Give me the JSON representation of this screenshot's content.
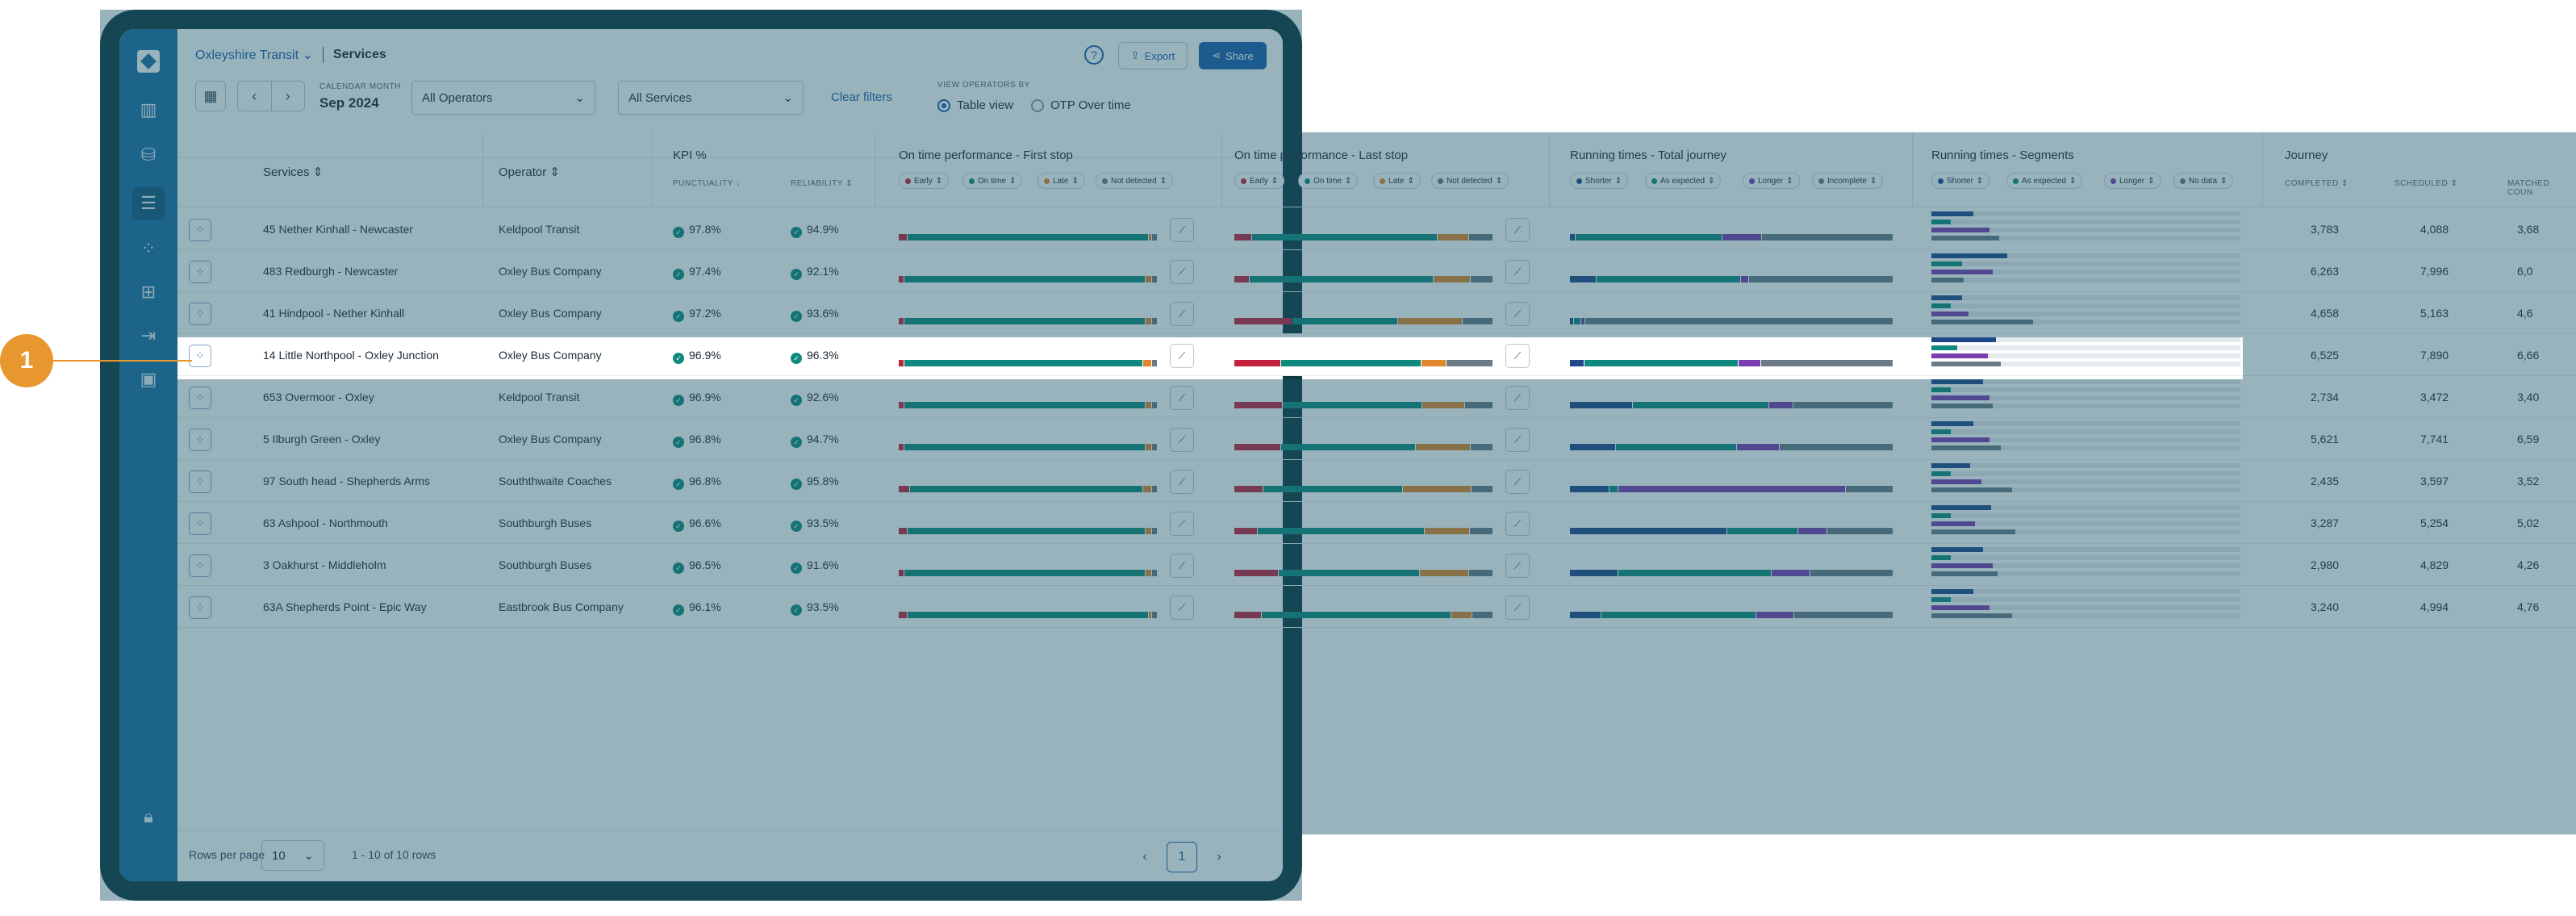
{
  "header": {
    "org": "Oxleyshire Transit",
    "page": "Services",
    "export": "Export",
    "share": "Share"
  },
  "filters": {
    "calendar_label": "CALENDAR MONTH",
    "calendar_value": "Sep 2024",
    "operators": "All Operators",
    "services": "All Services",
    "clear": "Clear filters",
    "view_by_label": "VIEW OPERATORS BY",
    "view_table": "Table view",
    "view_otp": "OTP Over time"
  },
  "columns": {
    "services": "Services",
    "operator": "Operator",
    "kpi": "KPI %",
    "punctuality": "PUNCTUALITY",
    "reliability": "RELIABILITY",
    "otp_first": "On time performance - First stop",
    "otp_last": "On time performance - Last stop",
    "rt_total": "Running times - Total journey",
    "rt_segments": "Running times - Segments",
    "journey": "Journey",
    "completed": "COMPLETED",
    "scheduled": "SCHEDULED",
    "matched": "MATCHED COUN"
  },
  "legend": {
    "otp": [
      "Early",
      "On time",
      "Late",
      "Not detected"
    ],
    "rt_total": [
      "Shorter",
      "As expected",
      "Longer",
      "Incomplete"
    ],
    "rt_segments": [
      "Shorter",
      "As expected",
      "Longer",
      "No data"
    ]
  },
  "rows": [
    {
      "service": "45 Nether Kinhall - Newcaster",
      "operator": "Keldpool Transit",
      "punct": "97.8%",
      "rel": "94.9%",
      "completed": "3,783",
      "scheduled": "4,088",
      "matched": "3,68"
    },
    {
      "service": "483 Redburgh - Newcaster",
      "operator": "Oxley Bus Company",
      "punct": "97.4%",
      "rel": "92.1%",
      "completed": "6,263",
      "scheduled": "7,996",
      "matched": "6,0"
    },
    {
      "service": "41 Hindpool - Nether Kinhall",
      "operator": "Oxley Bus Company",
      "punct": "97.2%",
      "rel": "93.6%",
      "completed": "4,658",
      "scheduled": "5,163",
      "matched": "4,6"
    },
    {
      "service": "14 Little Northpool - Oxley Junction",
      "operator": "Oxley Bus Company",
      "punct": "96.9%",
      "rel": "96.3%",
      "completed": "6,525",
      "scheduled": "7,890",
      "matched": "6,66"
    },
    {
      "service": "653 Overmoor - Oxley",
      "operator": "Keldpool Transit",
      "punct": "96.9%",
      "rel": "92.6%",
      "completed": "2,734",
      "scheduled": "3,472",
      "matched": "3,40"
    },
    {
      "service": "5 Ilburgh Green - Oxley",
      "operator": "Oxley Bus Company",
      "punct": "96.8%",
      "rel": "94.7%",
      "completed": "5,621",
      "scheduled": "7,741",
      "matched": "6,59"
    },
    {
      "service": "97 South head - Shepherds Arms",
      "operator": "Souththwaite Coaches",
      "punct": "96.8%",
      "rel": "95.8%",
      "completed": "2,435",
      "scheduled": "3,597",
      "matched": "3,52"
    },
    {
      "service": "63 Ashpool - Northmouth",
      "operator": "Southburgh Buses",
      "punct": "96.6%",
      "rel": "93.5%",
      "completed": "3,287",
      "scheduled": "5,254",
      "matched": "5,02"
    },
    {
      "service": "3 Oakhurst - Middleholm",
      "operator": "Southburgh Buses",
      "punct": "96.5%",
      "rel": "91.6%",
      "completed": "2,980",
      "scheduled": "4,829",
      "matched": "4,26"
    },
    {
      "service": "63A Shepherds Point - Epic Way",
      "operator": "Eastbrook Bus Company",
      "punct": "96.1%",
      "rel": "93.5%",
      "completed": "3,240",
      "scheduled": "4,994",
      "matched": "4,76"
    }
  ],
  "footer": {
    "rows_per_page_label": "Rows per page",
    "rows_per_page": "10",
    "count": "1 - 10 of 10 rows",
    "page": "1"
  },
  "callout": {
    "number": "1"
  },
  "colors": {
    "early": "#c4213e",
    "on_time": "#0f8a7e",
    "late": "#e0872b",
    "not_detected": "#6b7a85",
    "shorter": "#1f4a8a",
    "as_expected": "#0f8a7e",
    "longer": "#7b3db0",
    "incomplete": "#6b7a85"
  }
}
